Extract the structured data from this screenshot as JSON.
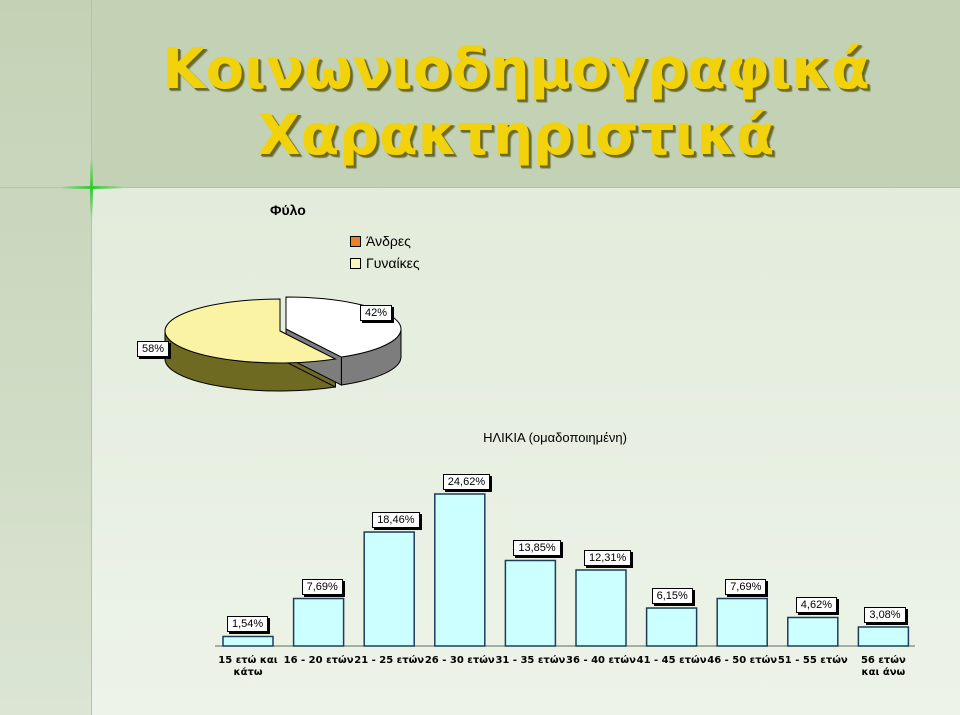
{
  "slide_title": [
    "Κοινωνιοδημογραφικά",
    "Χαρακτηριστικά"
  ],
  "icon_names": [
    "pie-chart",
    "bar-chart"
  ],
  "chart_data": [
    {
      "type": "pie",
      "title": "Φύλο",
      "labels": [
        "Άνδρες",
        "Γυναίκες"
      ],
      "values": [
        58,
        42
      ],
      "value_labels": [
        "58%",
        "42%"
      ],
      "colors": [
        "#f9f3a3",
        "#ffffff"
      ],
      "legend_colors": [
        "#e8822a",
        "#fbf7b8"
      ],
      "depth_colors": [
        "#6f6a22",
        "#7d7d7d"
      ],
      "legend": "top-right"
    },
    {
      "type": "bar",
      "title": "ΗΛΙΚΙΑ (ομαδοποιημένη)",
      "categories": [
        "15 ετώ και κάτω",
        "16 - 20 ετών",
        "21 - 25 ετών",
        "26 - 30 ετών",
        "31 - 35 ετών",
        "36 - 40 ετών",
        "41 - 45 ετών",
        "46 - 50 ετών",
        "51 - 55 ετών",
        "56 ετών και άνω"
      ],
      "values": [
        1.54,
        7.69,
        18.46,
        24.62,
        13.85,
        12.31,
        6.15,
        7.69,
        4.62,
        3.08
      ],
      "value_labels": [
        "1,54%",
        "7,69%",
        "18,46%",
        "24,62%",
        "13,85%",
        "12,31%",
        "6,15%",
        "7,69%",
        "4,62%",
        "3,08%"
      ],
      "bar_color": "#ccffff",
      "bar_outline": "#1c3c5a",
      "grid": false,
      "legend": "none"
    }
  ]
}
